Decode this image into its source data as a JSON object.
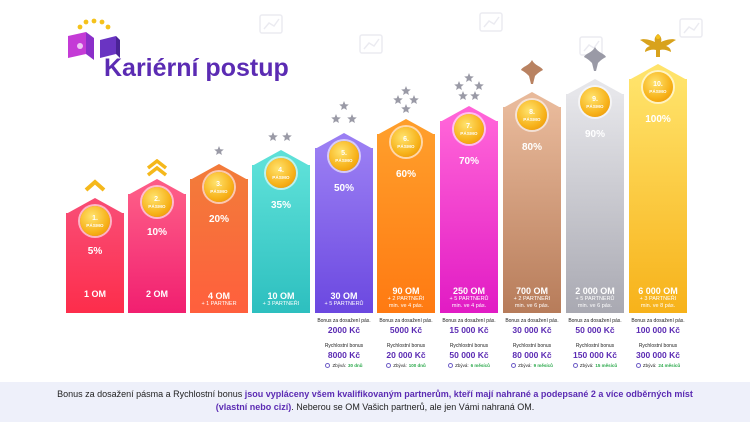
{
  "header": {
    "title": "Kariérní postup"
  },
  "colors": {
    "accent": "#5b2bb3",
    "gold": "#f7b21a",
    "remain_green": "#2aa84a"
  },
  "levels": [
    {
      "num": "1.",
      "label": "PÁSMO",
      "pct": "5%",
      "req_main": "1 OM",
      "req_sub": "",
      "icon": "single-chevron-icon"
    },
    {
      "num": "2.",
      "label": "PÁSMO",
      "pct": "10%",
      "req_main": "2 OM",
      "req_sub": "",
      "icon": "double-chevron-icon"
    },
    {
      "num": "3.",
      "label": "PÁSMO",
      "pct": "20%",
      "req_main": "4 OM",
      "req_sub": "+ 1 PARTNER",
      "icon": "one-star-icon"
    },
    {
      "num": "4.",
      "label": "PÁSMO",
      "pct": "35%",
      "req_main": "10 OM",
      "req_sub": "+ 3 PARTNEŘI",
      "icon": "two-stars-icon"
    },
    {
      "num": "5.",
      "label": "PÁSMO",
      "pct": "50%",
      "req_main": "30 OM",
      "req_sub": "+ 5 PARTNERŮ",
      "icon": "three-stars-icon"
    },
    {
      "num": "6.",
      "label": "PÁSMO",
      "pct": "60%",
      "req_main": "90 OM",
      "req_sub": "+ 2 PARTNEŘI",
      "req_sub2": "min. ve 4 pás.",
      "icon": "four-stars-icon"
    },
    {
      "num": "7.",
      "label": "PÁSMO",
      "pct": "70%",
      "req_main": "250 OM",
      "req_sub": "+ 5 PARTNERŮ",
      "req_sub2": "min. ve 4 pás.",
      "icon": "five-stars-icon"
    },
    {
      "num": "8.",
      "label": "PÁSMO",
      "pct": "80%",
      "req_main": "700 OM",
      "req_sub": "+ 2 PARTNEŘI",
      "req_sub2": "min. ve 6 pás.",
      "icon": "bronze-leaf-icon"
    },
    {
      "num": "9.",
      "label": "PÁSMO",
      "pct": "90%",
      "req_main": "2 000 OM",
      "req_sub": "+ 5 PARTNERŮ",
      "req_sub2": "min. ve 6 pás.",
      "icon": "silver-leaf-icon"
    },
    {
      "num": "10.",
      "label": "PÁSMO",
      "pct": "100%",
      "req_main": "6 000 OM",
      "req_sub": "+ 3 PARTNEŘI",
      "req_sub2": "min. ve 8 pás.",
      "icon": "eagle-icon"
    }
  ],
  "bonuses": [
    {
      "bonus_label": "Bonus za dosažení pás.",
      "bonus_value": "2000 Kč",
      "fast_label": "Rychlostní bonus",
      "fast_value": "8000 Kč",
      "remain_label": "Zbývá:",
      "remain_value": "30 dnů"
    },
    {
      "bonus_label": "Bonus za dosažení pás.",
      "bonus_value": "5000 Kč",
      "fast_label": "Rychlostní bonus",
      "fast_value": "20 000 Kč",
      "remain_label": "Zbývá:",
      "remain_value": "100 dnů"
    },
    {
      "bonus_label": "Bonus za dosažení pás.",
      "bonus_value": "15 000 Kč",
      "fast_label": "Rychlostní bonus",
      "fast_value": "50 000 Kč",
      "remain_label": "Zbývá:",
      "remain_value": "6 měsíců"
    },
    {
      "bonus_label": "Bonus za dosažení pás.",
      "bonus_value": "30 000 Kč",
      "fast_label": "Rychlostní bonus",
      "fast_value": "80 000 Kč",
      "remain_label": "Zbývá:",
      "remain_value": "9 měsíců"
    },
    {
      "bonus_label": "Bonus za dosažení pás.",
      "bonus_value": "50 000 Kč",
      "fast_label": "Rychlostní bonus",
      "fast_value": "150 000 Kč",
      "remain_label": "Zbývá:",
      "remain_value": "15 měsíců"
    },
    {
      "bonus_label": "Bonus za dosažení pás.",
      "bonus_value": "100 000 Kč",
      "fast_label": "Rychlostní bonus",
      "fast_value": "300 000 Kč",
      "remain_label": "Zbývá:",
      "remain_value": "24 měsíců"
    }
  ],
  "footer": {
    "part1": "Bonus za dosažení pásma a Rychlostní bonus ",
    "part2": "jsou vypláceny všem kvalifikovaným partnerům, kteří mají nahrané a podepsané 2 a více odběrných míst (vlastní nebo cizí)",
    "part3": ". Neberou se OM Vašich partnerů, ale jen Vámi nahraná OM."
  }
}
